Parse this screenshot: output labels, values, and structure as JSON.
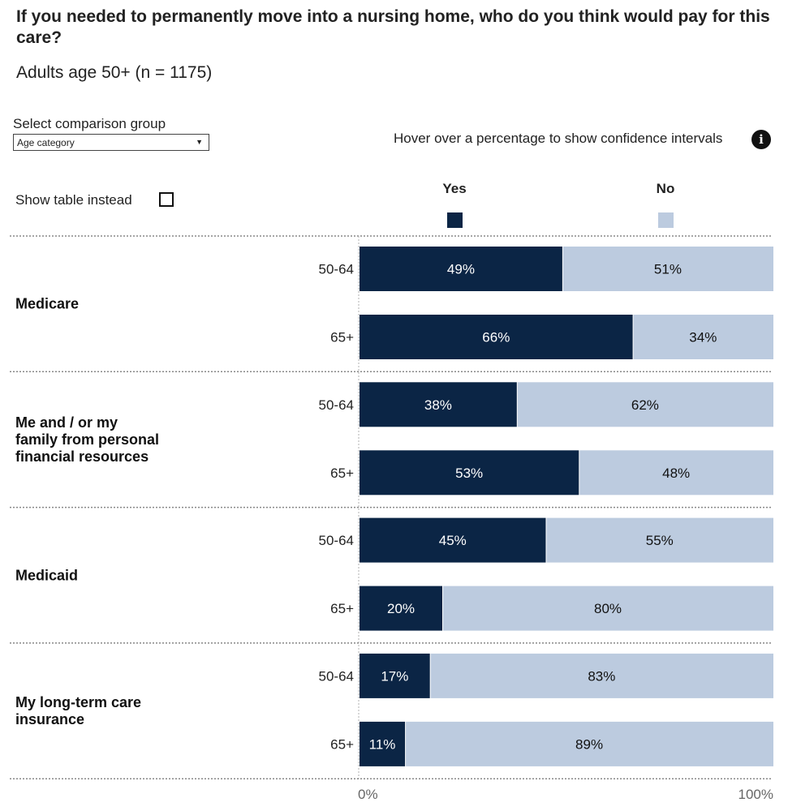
{
  "title": "If you needed to permanently move into a nursing home, who do you think would pay for this care?",
  "subtitle": "Adults age 50+ (n = 1175)",
  "controls": {
    "select_label": "Select comparison group",
    "select_value": "Age category",
    "hover_hint": "Hover over a percentage to show confidence intervals",
    "show_table_label": "Show table instead",
    "info_icon": "info-icon"
  },
  "colors": {
    "yes": "#0b2545",
    "no": "#bccbdf",
    "divider": "#888888"
  },
  "chart_data": {
    "type": "bar",
    "orientation": "horizontal-stacked-100",
    "title": "If you needed to permanently move into a nursing home, who do you think would pay for this care?",
    "legend": [
      "Yes",
      "No"
    ],
    "axis": {
      "min_label": "0%",
      "max_label": "100%",
      "range": [
        0,
        100
      ]
    },
    "groups": [
      {
        "category": "Medicare",
        "rows": [
          {
            "label": "50-64",
            "yes": 49,
            "no": 51
          },
          {
            "label": "65+",
            "yes": 66,
            "no": 34
          }
        ]
      },
      {
        "category": "Me and / or my family from personal financial resources",
        "rows": [
          {
            "label": "50-64",
            "yes": 38,
            "no": 62
          },
          {
            "label": "65+",
            "yes": 53,
            "no": 48
          }
        ]
      },
      {
        "category": "Medicaid",
        "rows": [
          {
            "label": "50-64",
            "yes": 45,
            "no": 55
          },
          {
            "label": "65+",
            "yes": 20,
            "no": 80
          }
        ]
      },
      {
        "category": "My long-term care insurance",
        "rows": [
          {
            "label": "50-64",
            "yes": 17,
            "no": 83
          },
          {
            "label": "65+",
            "yes": 11,
            "no": 89
          }
        ]
      }
    ]
  }
}
